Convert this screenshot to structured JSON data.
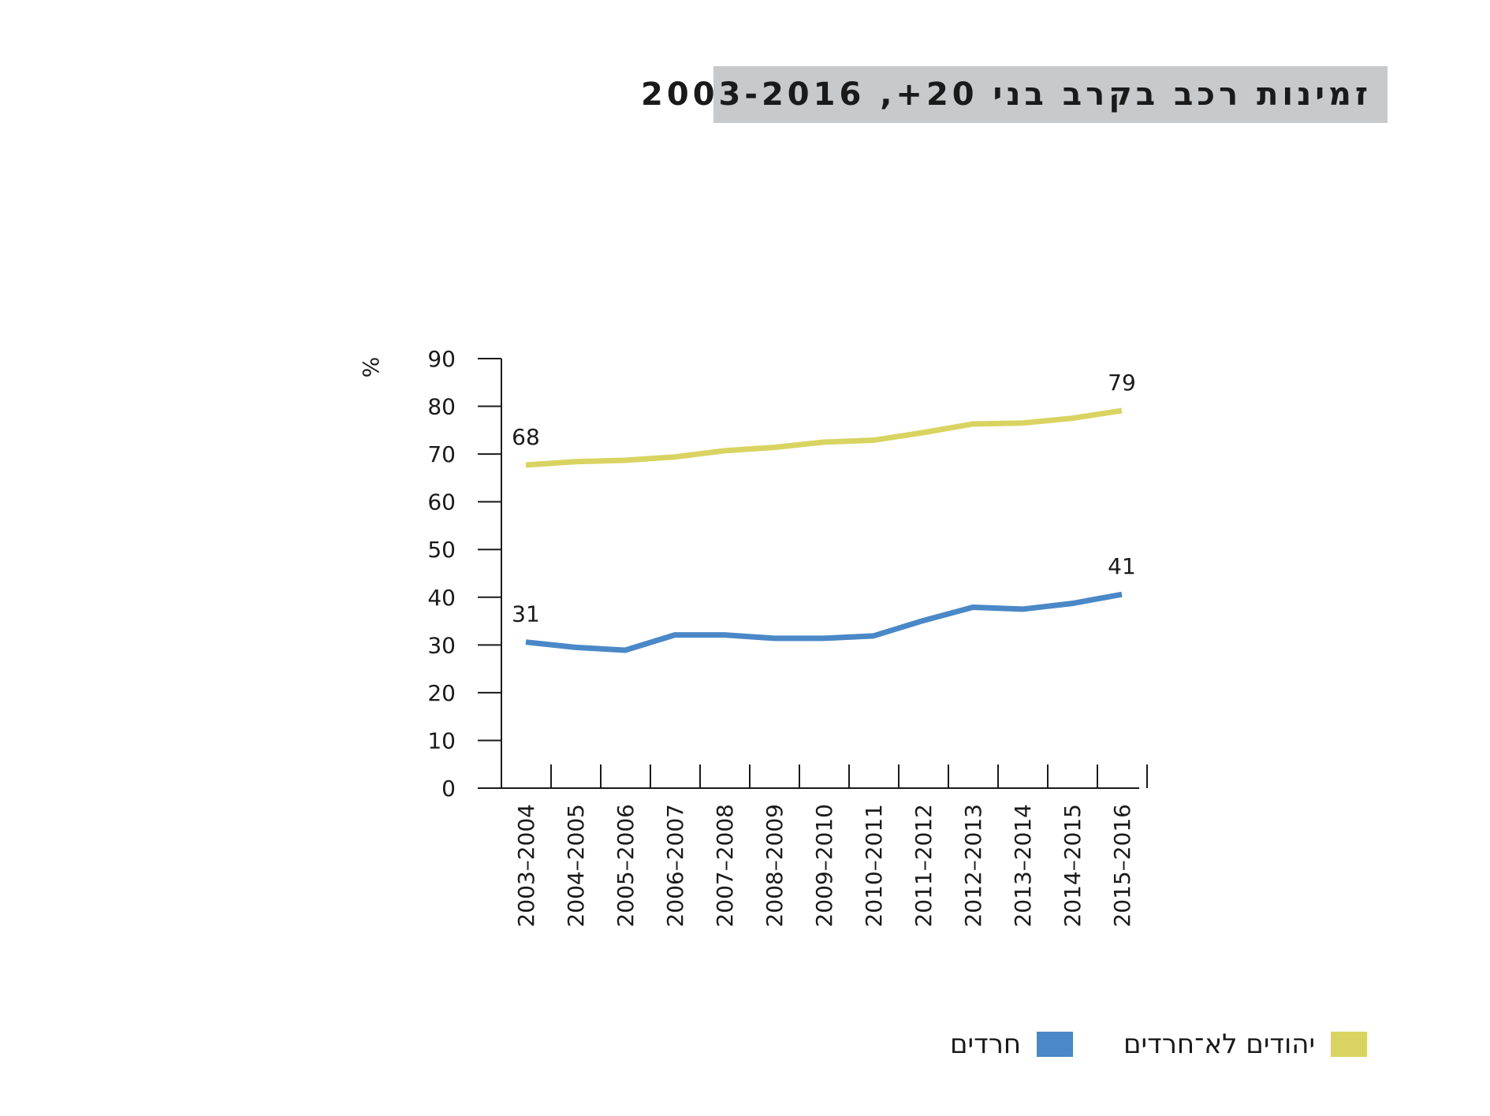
{
  "title": "זמינות רכב בקרב בני 20+, 2003-2016",
  "chart_data": {
    "type": "line",
    "categories": [
      "2003–2004",
      "2004–2005",
      "2005–2006",
      "2006–2007",
      "2007–2008",
      "2008–2009",
      "2009–2010",
      "2010–2011",
      "2011–2012",
      "2012–2013",
      "2013–2014",
      "2014–2015",
      "2015–2016"
    ],
    "ylabel": "%",
    "ylim": [
      0,
      90
    ],
    "yticks": [
      0,
      10,
      20,
      30,
      40,
      50,
      60,
      70,
      80,
      90
    ],
    "grid": false,
    "legend_position": "bottom-right",
    "series": [
      {
        "name": "יהודים לא־חרדים",
        "color": "#d9d461",
        "values": [
          67.7,
          68.4,
          68.7,
          69.4,
          70.7,
          71.4,
          72.5,
          72.9,
          74.5,
          76.3,
          76.5,
          77.5,
          79.1
        ],
        "labels": [
          {
            "index": 0,
            "text": "68"
          },
          {
            "index": 12,
            "text": "79"
          }
        ]
      },
      {
        "name": "חרדים",
        "color": "#4a88c7",
        "values": [
          30.6,
          29.5,
          28.9,
          32.1,
          32.1,
          31.4,
          31.4,
          31.9,
          35.1,
          37.9,
          37.5,
          38.7,
          40.6
        ],
        "labels": [
          {
            "index": 0,
            "text": "31"
          },
          {
            "index": 12,
            "text": "41"
          }
        ]
      }
    ]
  }
}
